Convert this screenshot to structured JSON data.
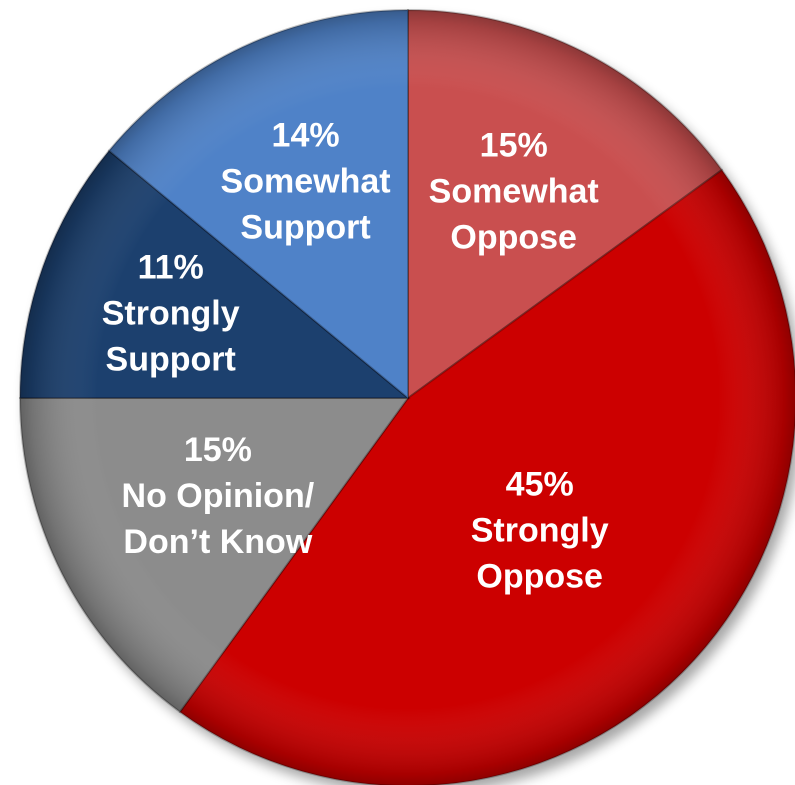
{
  "chart_data": {
    "type": "pie",
    "categories": [
      "Somewhat Oppose",
      "Strongly Oppose",
      "No Opinion/ Don’t Know",
      "Strongly Support",
      "Somewhat Support"
    ],
    "values": [
      15,
      45,
      15,
      11,
      14
    ],
    "slices": [
      {
        "label": "Somewhat Oppose",
        "value": 15,
        "percent_label": "15%",
        "lines": [
          "Somewhat",
          "Oppose"
        ],
        "color": "#C9504F"
      },
      {
        "label": "Strongly Oppose",
        "value": 45,
        "percent_label": "45%",
        "lines": [
          "Strongly",
          "Oppose"
        ],
        "color": "#CC0000"
      },
      {
        "label": "No Opinion/ Don’t Know",
        "value": 15,
        "percent_label": "15%",
        "lines": [
          "No Opinion/",
          "Don’t Know"
        ],
        "color": "#8C8C8C"
      },
      {
        "label": "Strongly Support",
        "value": 11,
        "percent_label": "11%",
        "lines": [
          "Strongly",
          "Support"
        ],
        "color": "#1F3F6E"
      },
      {
        "label": "Somewhat Support",
        "value": 14,
        "percent_label": "14%",
        "lines": [
          "Somewhat",
          "Support"
        ],
        "color": "#4F82C8"
      }
    ],
    "start_angle_deg": 0,
    "direction": "clockwise",
    "legend": "none"
  }
}
